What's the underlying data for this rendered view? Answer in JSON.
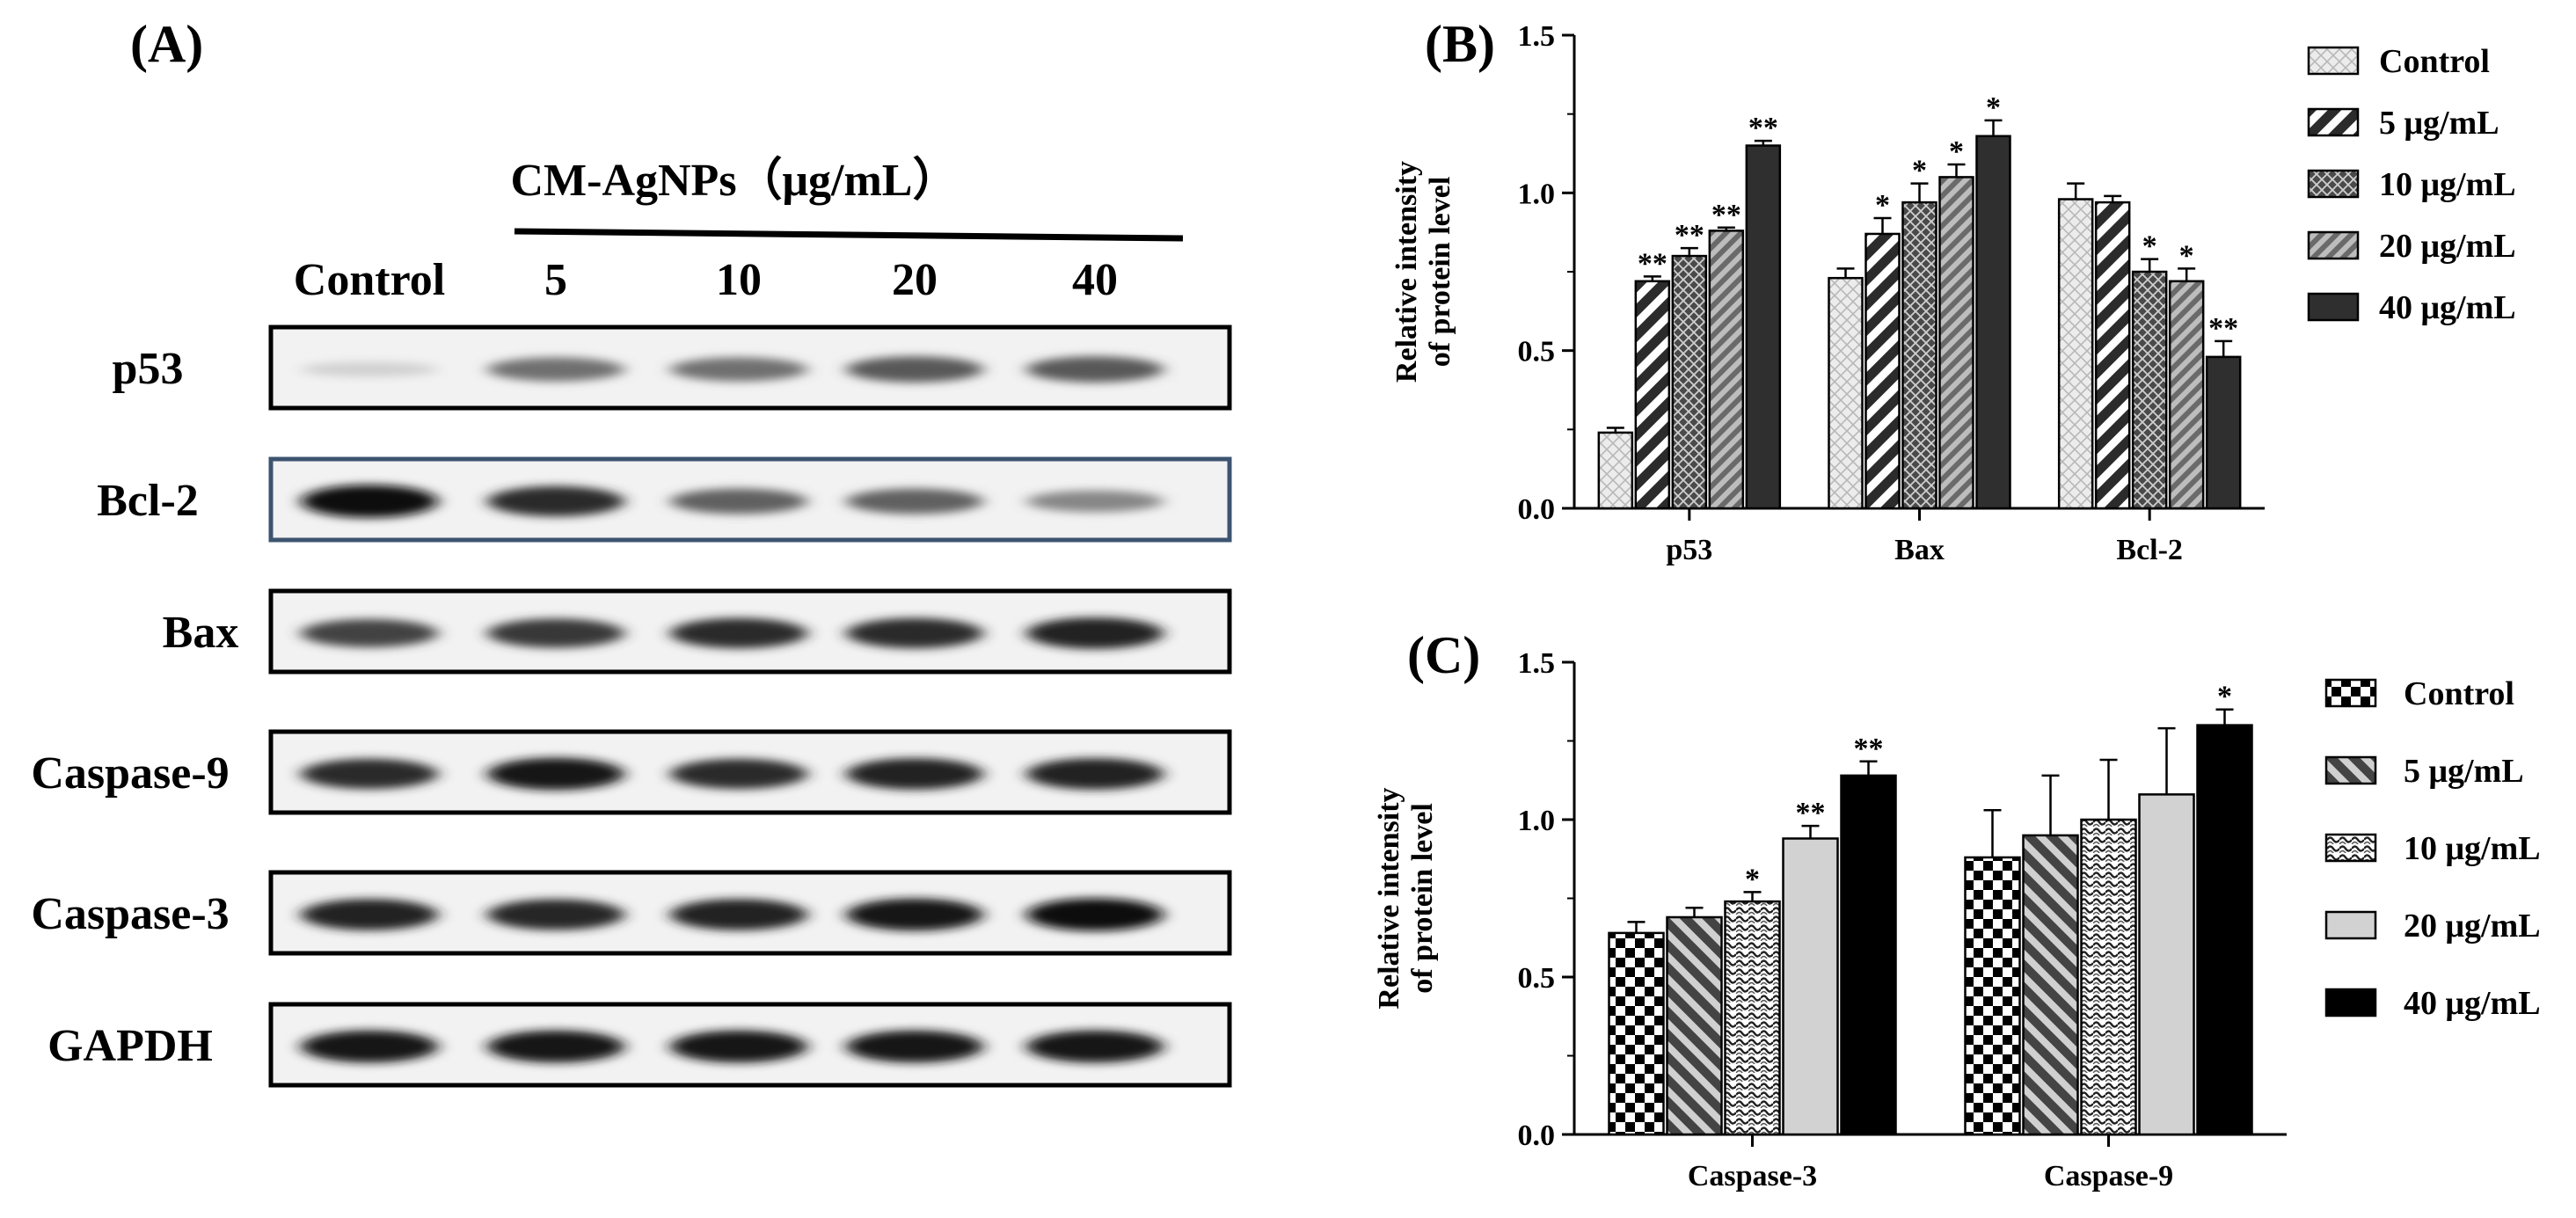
{
  "panelA": {
    "label": "(A)",
    "treatment_header": "CM-AgNPs（μg/mL）",
    "lanes": [
      "Control",
      "5",
      "10",
      "20",
      "40"
    ],
    "blots": [
      {
        "name": "p53",
        "intensity": [
          0.12,
          0.55,
          0.55,
          0.65,
          0.65
        ]
      },
      {
        "name": "Bcl-2",
        "intensity": [
          0.98,
          0.85,
          0.62,
          0.62,
          0.45
        ]
      },
      {
        "name": "Bax",
        "intensity": [
          0.75,
          0.8,
          0.85,
          0.85,
          0.9
        ]
      },
      {
        "name": "Caspase-9",
        "intensity": [
          0.85,
          0.95,
          0.85,
          0.9,
          0.9
        ]
      },
      {
        "name": "Caspase-3",
        "intensity": [
          0.9,
          0.88,
          0.9,
          0.95,
          0.97
        ]
      },
      {
        "name": "GAPDH",
        "intensity": [
          0.95,
          0.95,
          0.95,
          0.95,
          0.95
        ]
      }
    ]
  },
  "chart_data": [
    {
      "panel": "(B)",
      "type": "bar",
      "ylabel_line1": "Relative intensity",
      "ylabel_line2": "of protein level",
      "ylim": [
        0,
        1.5
      ],
      "yticks": [
        "0.0",
        "0.5",
        "1.0",
        "1.5"
      ],
      "categories": [
        "p53",
        "Bax",
        "Bcl-2"
      ],
      "series": [
        {
          "name": "Control",
          "values": [
            0.24,
            0.73,
            0.98
          ],
          "errors": [
            0.015,
            0.03,
            0.05
          ],
          "sig": [
            "",
            "",
            ""
          ]
        },
        {
          "name": "5 μg/mL",
          "values": [
            0.72,
            0.87,
            0.97
          ],
          "errors": [
            0.015,
            0.05,
            0.02
          ],
          "sig": [
            "**",
            "*",
            ""
          ]
        },
        {
          "name": "10 μg/mL",
          "values": [
            0.8,
            0.97,
            0.75
          ],
          "errors": [
            0.025,
            0.06,
            0.04
          ],
          "sig": [
            "**",
            "*",
            "*"
          ]
        },
        {
          "name": "20 μg/mL",
          "values": [
            0.88,
            1.05,
            0.72
          ],
          "errors": [
            0.01,
            0.04,
            0.04
          ],
          "sig": [
            "**",
            "*",
            "*"
          ]
        },
        {
          "name": "40 μg/mL",
          "values": [
            1.15,
            1.18,
            0.48
          ],
          "errors": [
            0.015,
            0.05,
            0.05
          ],
          "sig": [
            "**",
            "*",
            "**"
          ]
        }
      ],
      "colors": [
        "#e6e6e6",
        "#555555",
        "#555555",
        "#888888",
        "#333333"
      ],
      "legend": "right"
    },
    {
      "panel": "(C)",
      "type": "bar",
      "ylabel_line1": "Relative intensity",
      "ylabel_line2": "of protein level",
      "ylim": [
        0,
        1.5
      ],
      "yticks": [
        "0.0",
        "0.5",
        "1.0",
        "1.5"
      ],
      "categories": [
        "Caspase-3",
        "Caspase-9"
      ],
      "series": [
        {
          "name": "Control",
          "values": [
            0.64,
            0.88
          ],
          "errors": [
            0.035,
            0.15
          ],
          "sig": [
            "",
            ""
          ]
        },
        {
          "name": "5 μg/mL",
          "values": [
            0.69,
            0.95
          ],
          "errors": [
            0.03,
            0.19
          ],
          "sig": [
            "",
            ""
          ]
        },
        {
          "name": "10 μg/mL",
          "values": [
            0.74,
            1.0
          ],
          "errors": [
            0.03,
            0.19
          ],
          "sig": [
            "*",
            ""
          ]
        },
        {
          "name": "20 μg/mL",
          "values": [
            0.94,
            1.08
          ],
          "errors": [
            0.04,
            0.21
          ],
          "sig": [
            "**",
            ""
          ]
        },
        {
          "name": "40 μg/mL",
          "values": [
            1.14,
            1.3
          ],
          "errors": [
            0.045,
            0.05
          ],
          "sig": [
            "**",
            "*"
          ]
        }
      ],
      "colors": [
        "#000000",
        "#777777",
        "#333333",
        "#cccccc",
        "#000000"
      ],
      "legend": "right"
    }
  ]
}
